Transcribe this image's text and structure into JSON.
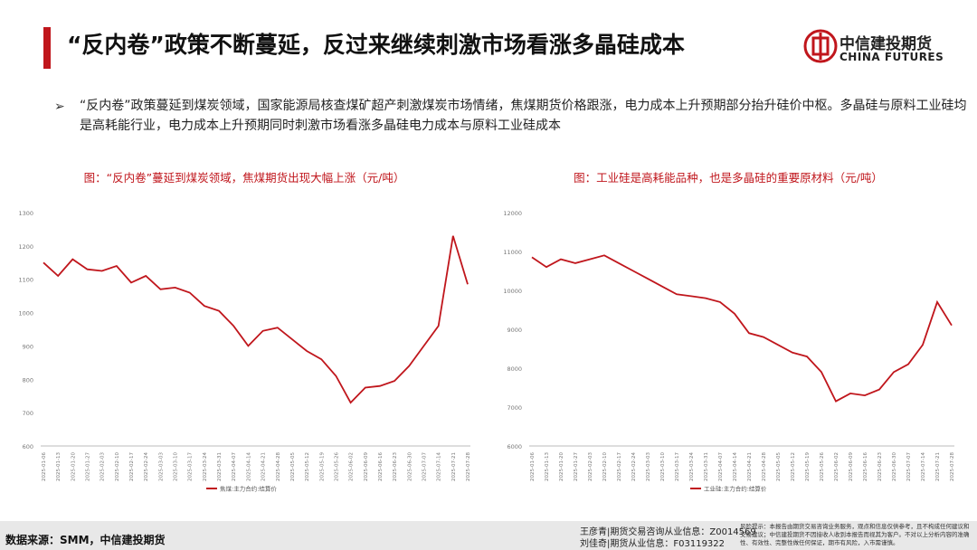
{
  "header": {
    "title": "“反内卷”政策不断蔓延，反过来继续刺激市场看涨多晶硅成本",
    "logo_cn": "中信建投期货",
    "logo_en": "CHINA FUTURES"
  },
  "bullet": "“反内卷”政策蔓延到煤炭领域，国家能源局核查煤矿超产刺激煤炭市场情绪，焦煤期货价格跟涨，电力成本上升预期部分抬升硅价中枢。多晶硅与原料工业硅均是高耗能行业，电力成本上升预期同时刺激市场看涨多晶硅电力成本与原料工业硅成本",
  "chart_data": [
    {
      "type": "line",
      "title": "图：“反内卷”蔓延到煤炭领域，焦煤期货出现大幅上涨（元/吨）",
      "x": [
        "2025-01-06",
        "2025-01-13",
        "2025-01-20",
        "2025-01-27",
        "2025-02-03",
        "2025-02-10",
        "2025-02-17",
        "2025-02-24",
        "2025-03-03",
        "2025-03-10",
        "2025-03-17",
        "2025-03-24",
        "2025-03-31",
        "2025-04-07",
        "2025-04-14",
        "2025-04-21",
        "2025-04-28",
        "2025-05-05",
        "2025-05-12",
        "2025-05-19",
        "2025-05-26",
        "2025-06-02",
        "2025-06-09",
        "2025-06-16",
        "2025-06-23",
        "2025-06-30",
        "2025-07-07",
        "2025-07-14",
        "2025-07-21",
        "2025-07-28"
      ],
      "series": [
        {
          "name": "焦煤:主力合约:结算价",
          "color": "#c0161c",
          "values": [
            1150,
            1110,
            1160,
            1130,
            1125,
            1140,
            1090,
            1110,
            1070,
            1075,
            1060,
            1020,
            1005,
            960,
            900,
            945,
            955,
            920,
            885,
            860,
            810,
            730,
            775,
            780,
            795,
            840,
            900,
            960,
            1230,
            1085
          ]
        }
      ],
      "ylim": [
        600,
        1300
      ],
      "yticks": [
        600,
        700,
        800,
        900,
        1000,
        1100,
        1200,
        1300
      ],
      "grid": false,
      "legend": "bottom"
    },
    {
      "type": "line",
      "title": "图：工业硅是高耗能品种，也是多晶硅的重要原材料（元/吨）",
      "x": [
        "2025-01-06",
        "2025-01-13",
        "2025-01-20",
        "2025-01-27",
        "2025-02-03",
        "2025-02-10",
        "2025-02-17",
        "2025-02-24",
        "2025-03-03",
        "2025-03-10",
        "2025-03-17",
        "2025-03-24",
        "2025-03-31",
        "2025-04-07",
        "2025-04-14",
        "2025-04-21",
        "2025-04-28",
        "2025-05-05",
        "2025-05-12",
        "2025-05-19",
        "2025-05-26",
        "2025-06-02",
        "2025-06-09",
        "2025-06-16",
        "2025-06-23",
        "2025-06-30",
        "2025-07-07",
        "2025-07-14",
        "2025-07-21",
        "2025-07-28"
      ],
      "series": [
        {
          "name": "工业硅:主力合约:结算价",
          "color": "#c0161c",
          "values": [
            10850,
            10600,
            10800,
            10700,
            10800,
            10900,
            10700,
            10500,
            10300,
            10100,
            9900,
            9850,
            9800,
            9700,
            9400,
            8900,
            8800,
            8600,
            8400,
            8300,
            7900,
            7150,
            7350,
            7300,
            7450,
            7900,
            8100,
            8600,
            9700,
            9100
          ]
        }
      ],
      "ylim": [
        6000,
        12000
      ],
      "yticks": [
        6000,
        7000,
        8000,
        9000,
        10000,
        11000,
        12000
      ],
      "grid": false,
      "legend": "bottom"
    }
  ],
  "footer": {
    "source": "数据来源：SMM，中信建投期货",
    "analyst1": "王彦青|期货交易咨询从业信息：Z0014569",
    "analyst2": "刘佳奇|期货从业信息：F03119322",
    "risk": "风险提示：本报告由期货交易咨询业务服务，观点和信息仅供参考，且不构成任何建议和交易建议；中信建投期货不因接收人收到本报告而视其为客户。不对以上分析内容的准确性、有效性、完整性做任何保证，期市有风险，入市需谨慎。"
  }
}
